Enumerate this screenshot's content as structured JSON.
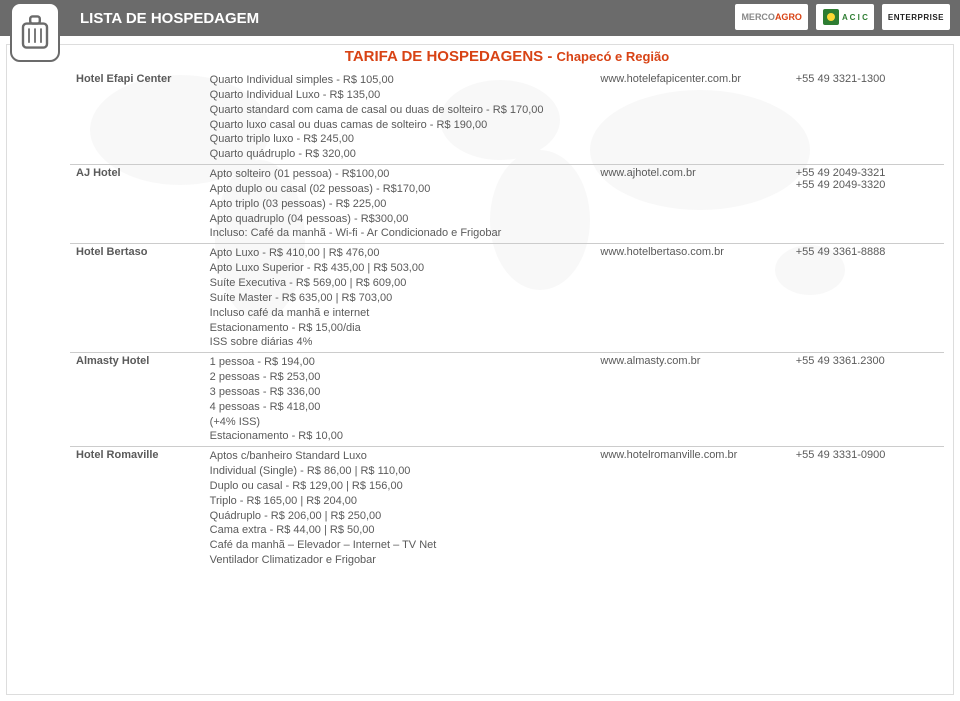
{
  "header": {
    "title": "LISTA DE HOSPEDAGEM",
    "logos": {
      "merco": "MERCO",
      "agro": "AGRO",
      "acic": "A C I C",
      "enterprise": "ENTERPRISE"
    }
  },
  "section": {
    "title_main": "TARIFA DE HOSPEDAGENS - ",
    "title_sub": "Chapecó e Região"
  },
  "hotels": [
    {
      "name": "Hotel Efapi Center",
      "details": "Quarto Individual simples - R$ 105,00\nQuarto Individual Luxo - R$ 135,00\nQuarto standard com cama de casal ou duas de solteiro - R$ 170,00\nQuarto luxo casal ou duas camas de solteiro - R$ 190,00\nQuarto triplo luxo - R$ 245,00\nQuarto quádruplo - R$ 320,00",
      "website": "www.hotelefapicenter.com.br",
      "phone": "+55 49 3321-1300"
    },
    {
      "name": "AJ Hotel",
      "details": "Apto solteiro (01 pessoa) - R$100,00\nApto duplo ou casal (02 pessoas) - R$170,00\nApto triplo (03 pessoas) - R$ 225,00\nApto quadruplo (04 pessoas) - R$300,00\nIncluso: Café da manhã -  Wi-fi - Ar Condicionado e Frigobar",
      "website": "www.ajhotel.com.br",
      "phone": "+55 49 2049-3321\n+55 49 2049-3320"
    },
    {
      "name": "Hotel Bertaso",
      "details": "Apto Luxo - R$ 410,00 | R$ 476,00\nApto Luxo Superior - R$ 435,00 | R$ 503,00\nSuíte Executiva - R$ 569,00 | R$ 609,00\nSuíte Master - R$ 635,00 | R$ 703,00\nIncluso café da manhã e internet\nEstacionamento - R$ 15,00/dia\nISS sobre diárias 4%",
      "website": "www.hotelbertaso.com.br",
      "phone": "+55 49 3361-8888"
    },
    {
      "name": "Almasty Hotel",
      "details": "1 pessoa - R$ 194,00\n2 pessoas - R$ 253,00\n3 pessoas - R$ 336,00\n4 pessoas - R$ 418,00\n(+4% ISS)\nEstacionamento - R$ 10,00",
      "website": "www.almasty.com.br",
      "phone": "+55 49 3361.2300"
    },
    {
      "name": "Hotel Romaville",
      "details": "Aptos c/banheiro Standard Luxo\nIndividual (Single) - R$ 86,00 | R$ 110,00\nDuplo ou casal - R$ 129,00 | R$ 156,00\nTriplo - R$ 165,00 | R$ 204,00\nQuádruplo - R$ 206,00 | R$ 250,00\nCama extra - R$ 44,00 | R$ 50,00\nCafé da manhã – Elevador – Internet – TV Net\nVentilador Climatizador e Frigobar",
      "website": "www.hotelromanville.com.br",
      "phone": "+55 49 3331-0900"
    }
  ],
  "style": {
    "header_bg": "#6b6b6b",
    "accent": "#d84315",
    "text": "#5a5a5a",
    "border": "#cccccc"
  }
}
